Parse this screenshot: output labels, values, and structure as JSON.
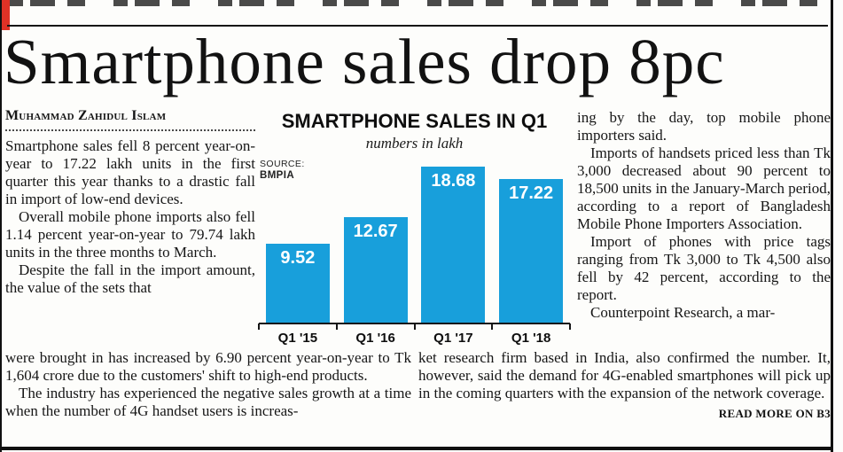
{
  "masthead": {
    "red_fragment_color": "#e03226"
  },
  "headline": "Smartphone sales drop 8pc",
  "byline": "Muhammad Zahidul Islam",
  "article": {
    "left_column": [
      "Smartphone sales fell 8 percent year-on-year to 17.22 lakh units in the first quarter this year thanks to a drastic fall in import of low-end devices.",
      "Overall mobile phone imports also fell 1.14 percent year-on-year to 79.74 lakh units in the three months to March.",
      "Despite the fall in the import amount, the value of the sets that"
    ],
    "bottom_left_column": [
      "were brought in has increased by 6.90 percent year-on-year to Tk 1,604 crore due to the customers' shift to high-end products.",
      "The industry has experienced the negative sales growth at a time when the number of 4G handset users is increas-"
    ],
    "right_column": [
      "ing by the day, top mobile phone importers said.",
      "Imports of handsets priced less than Tk 3,000 decreased about 90 percent to 18,500 units in the January-March period, according to a report of Bangladesh Mobile Phone Importers Association.",
      "Import of phones with price tags ranging from Tk 3,000 to Tk 4,500 also fell by 42 percent, according to the report.",
      "Counterpoint Research, a mar-"
    ],
    "bottom_right_column": [
      "ket research firm based in India, also confirmed the number. It, however, said the demand for 4G-enabled smartphones will pick up in the coming quarters with the expansion of the network coverage."
    ],
    "read_more": "READ MORE ON B3"
  },
  "chart_data": {
    "type": "bar",
    "title": "SMARTPHONE SALES IN Q1",
    "subtitle": "numbers in lakh",
    "source_label": "SOURCE:",
    "source_value": "BMPIA",
    "categories": [
      "Q1 '15",
      "Q1 '16",
      "Q1 '17",
      "Q1 '18"
    ],
    "values": [
      9.52,
      12.67,
      18.68,
      17.22
    ],
    "ylim": [
      0,
      20
    ],
    "grid": false,
    "legend": false,
    "value_labels_inside_bars": true,
    "bar_color": "#189fdb",
    "value_label_color": "#ffffff"
  }
}
